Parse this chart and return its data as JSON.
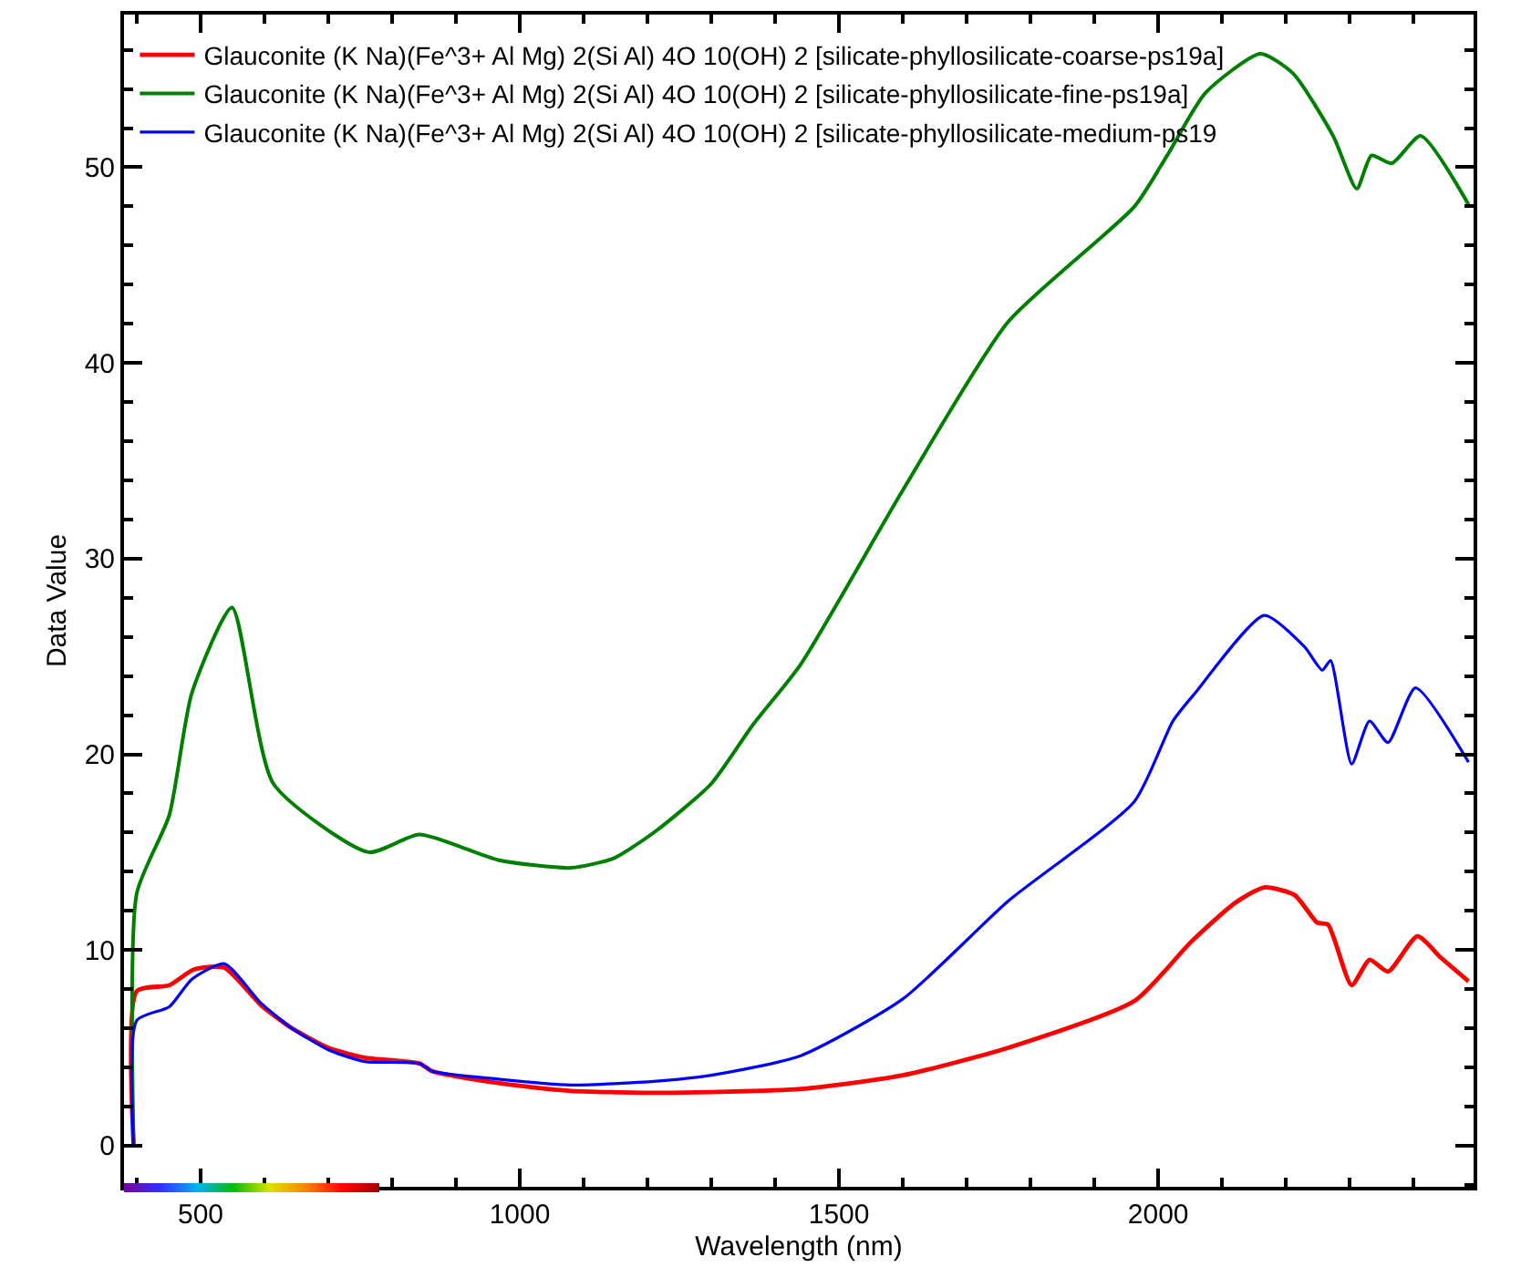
{
  "chart_data": {
    "type": "line",
    "xlabel": "Wavelength (nm)",
    "ylabel": "Data Value",
    "xlim": [
      380,
      2494
    ],
    "ylim": [
      -2.1,
      57.8
    ],
    "xticks": [
      500,
      1000,
      1500,
      2000
    ],
    "yticks": [
      0,
      10,
      20,
      30,
      40,
      50
    ],
    "grid": false,
    "legend": "top left",
    "marker": "none",
    "line_style": "solid",
    "series": [
      {
        "name": "Glauconite (K Na)(Fe^3+ Al Mg) 2(Si Al) 4O 10(OH) 2 [silicate-phyllosilicate-coarse-ps19a]",
        "color": "#ff0000",
        "x": [
          395,
          400,
          451,
          489,
          537,
          594,
          643,
          700,
          757,
          843,
          863,
          966,
          1043,
          1080,
          1214,
          1440,
          1600,
          1765,
          1963,
          2051,
          2120,
          2166,
          2214,
          2249,
          2266,
          2303,
          2331,
          2360,
          2406,
          2443,
          2486
        ],
        "values": [
          0,
          7.9,
          8.2,
          9.0,
          9.1,
          7.2,
          6.0,
          5.0,
          4.5,
          4.2,
          3.8,
          3.2,
          2.9,
          2.8,
          2.7,
          2.9,
          3.6,
          5.0,
          7.4,
          10.4,
          12.4,
          13.2,
          12.8,
          11.4,
          11.3,
          8.2,
          9.5,
          8.9,
          10.7,
          9.6,
          8.4
        ]
      },
      {
        "name": "Glauconite (K Na)(Fe^3+ Al Mg) 2(Si Al) 4O 10(OH) 2 [silicate-phyllosilicate-fine-ps19a]",
        "color": "#008000",
        "x": [
          395,
          400,
          451,
          486,
          549,
          614,
          763,
          843,
          966,
          1080,
          1148,
          1214,
          1300,
          1365,
          1440,
          1600,
          1765,
          1963,
          2014,
          2074,
          2160,
          2211,
          2274,
          2311,
          2334,
          2366,
          2411,
          2486
        ],
        "values": [
          0,
          12.9,
          16.9,
          23.1,
          27.5,
          18.5,
          15.0,
          15.9,
          14.6,
          14.2,
          14.7,
          16.1,
          18.5,
          21.5,
          24.6,
          33.5,
          42.1,
          48.0,
          50.6,
          53.8,
          55.8,
          54.8,
          51.6,
          48.9,
          50.6,
          50.2,
          51.6,
          48.1
        ]
      },
      {
        "name": "Glauconite (K Na)(Fe^3+ Al Mg) 2(Si Al) 4O 10(OH) 2 [silicate-phyllosilicate-medium-ps19",
        "color": "#0000ff",
        "x": [
          395,
          400,
          451,
          486,
          537,
          594,
          643,
          700,
          757,
          843,
          863,
          966,
          1080,
          1214,
          1300,
          1440,
          1600,
          1765,
          1963,
          2023,
          2057,
          2166,
          2229,
          2257,
          2270,
          2303,
          2331,
          2360,
          2403,
          2486
        ],
        "values": [
          0,
          6.4,
          7.1,
          8.5,
          9.3,
          7.3,
          6.0,
          4.9,
          4.3,
          4.2,
          3.8,
          3.4,
          3.1,
          3.3,
          3.6,
          4.6,
          7.5,
          12.5,
          17.6,
          21.7,
          23.1,
          27.1,
          25.5,
          24.3,
          24.8,
          19.5,
          21.7,
          20.6,
          23.4,
          19.6
        ]
      }
    ]
  }
}
